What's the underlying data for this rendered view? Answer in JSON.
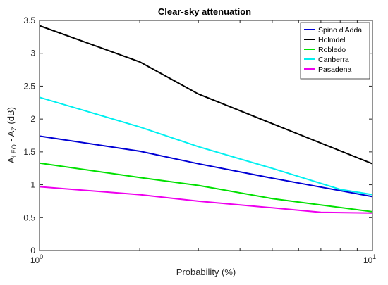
{
  "chart_data": {
    "type": "line",
    "title": "Clear-sky attenuation",
    "xlabel": "Probability (%)",
    "ylabel_parts": {
      "base": "A",
      "sub1": "LEO",
      "mid": " - A",
      "sub2": "Z",
      "unit": " (dB)"
    },
    "xscale": "log",
    "xlim": [
      1,
      10
    ],
    "ylim": [
      0,
      3.5
    ],
    "x_ticks": [
      1,
      10
    ],
    "x_tick_labels": [
      {
        "base": "10",
        "exp": "0"
      },
      {
        "base": "10",
        "exp": "1"
      }
    ],
    "y_ticks": [
      "0",
      "0.5",
      "1",
      "1.5",
      "2",
      "2.5",
      "3",
      "3.5"
    ],
    "grid": false,
    "legend_position": "top-right",
    "series": [
      {
        "name": "Spino d'Adda",
        "color": "#0000d4",
        "points": [
          [
            1,
            1.74
          ],
          [
            2,
            1.51
          ],
          [
            3,
            1.32
          ],
          [
            5,
            1.1
          ],
          [
            10,
            0.82
          ]
        ]
      },
      {
        "name": "Holmdel",
        "color": "#000000",
        "points": [
          [
            1,
            3.42
          ],
          [
            2,
            2.87
          ],
          [
            3,
            2.38
          ],
          [
            5,
            1.93
          ],
          [
            10,
            1.32
          ]
        ]
      },
      {
        "name": "Robledo",
        "color": "#00e000",
        "points": [
          [
            1,
            1.33
          ],
          [
            2,
            1.11
          ],
          [
            3,
            0.99
          ],
          [
            5,
            0.79
          ],
          [
            10,
            0.59
          ]
        ]
      },
      {
        "name": "Canberra",
        "color": "#00f0f0",
        "points": [
          [
            1,
            2.33
          ],
          [
            2,
            1.88
          ],
          [
            3,
            1.58
          ],
          [
            5,
            1.25
          ],
          [
            8,
            0.93
          ],
          [
            10,
            0.85
          ]
        ]
      },
      {
        "name": "Pasadena",
        "color": "#ee00ee",
        "points": [
          [
            1,
            0.97
          ],
          [
            2,
            0.85
          ],
          [
            3,
            0.75
          ],
          [
            5,
            0.65
          ],
          [
            7,
            0.58
          ],
          [
            10,
            0.57
          ]
        ]
      }
    ]
  }
}
